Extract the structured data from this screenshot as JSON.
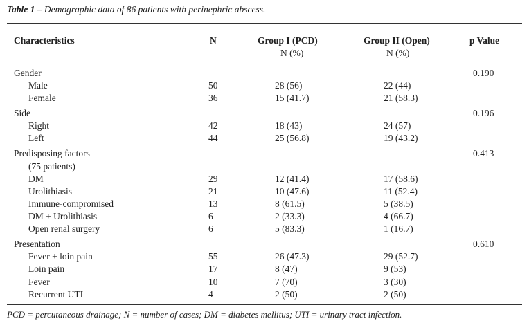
{
  "caption": {
    "label": "Table 1",
    "text": " – Demographic data of 86 patients with perinephric abscess."
  },
  "headers": {
    "characteristics": "Characteristics",
    "n": "N",
    "group1": "Group I (PCD)",
    "group1_sub": "N (%)",
    "group2": "Group II (Open)",
    "group2_sub": "N (%)",
    "pvalue": "p Value"
  },
  "rows": [
    {
      "label": "Gender",
      "indent": false,
      "n": "",
      "g1": "",
      "g2": "",
      "p": "0.190"
    },
    {
      "label": "Male",
      "indent": true,
      "n": "50",
      "g1": "28 (56)",
      "g2": "22 (44)",
      "p": ""
    },
    {
      "label": "Female",
      "indent": true,
      "n": "36",
      "g1": "15 (41.7)",
      "g2": "21 (58.3)",
      "p": ""
    },
    {
      "label": "Side",
      "indent": false,
      "n": "",
      "g1": "",
      "g2": "",
      "p": "0.196"
    },
    {
      "label": "Right",
      "indent": true,
      "n": "42",
      "g1": "18 (43)",
      "g2": "24 (57)",
      "p": ""
    },
    {
      "label": "Left",
      "indent": true,
      "n": "44",
      "g1": "25 (56.8)",
      "g2": "19 (43.2)",
      "p": ""
    },
    {
      "label": "Predisposing factors",
      "indent": false,
      "n": "",
      "g1": "",
      "g2": "",
      "p": "0.413"
    },
    {
      "label": "(75 patients)",
      "indent": true,
      "n": "",
      "g1": "",
      "g2": "",
      "p": ""
    },
    {
      "label": "DM",
      "indent": true,
      "n": "29",
      "g1": "12 (41.4)",
      "g2": "17 (58.6)",
      "p": ""
    },
    {
      "label": "Urolithiasis",
      "indent": true,
      "n": "21",
      "g1": "10 (47.6)",
      "g2": "11 (52.4)",
      "p": ""
    },
    {
      "label": "Immune-compromised",
      "indent": true,
      "n": "13",
      "g1": "8 (61.5)",
      "g2": "5 (38.5)",
      "p": ""
    },
    {
      "label": "DM + Urolithiasis",
      "indent": true,
      "n": "6",
      "g1": "2 (33.3)",
      "g2": "4 (66.7)",
      "p": ""
    },
    {
      "label": "Open renal surgery",
      "indent": true,
      "n": "6",
      "g1": "5 (83.3)",
      "g2": "1 (16.7)",
      "p": ""
    },
    {
      "label": "Presentation",
      "indent": false,
      "n": "",
      "g1": "",
      "g2": "",
      "p": "0.610"
    },
    {
      "label": "Fever + loin pain",
      "indent": true,
      "n": "55",
      "g1": "26 (47.3)",
      "g2": "29 (52.7)",
      "p": ""
    },
    {
      "label": "Loin pain",
      "indent": true,
      "n": "17",
      "g1": "8 (47)",
      "g2": "9 (53)",
      "p": ""
    },
    {
      "label": "Fever",
      "indent": true,
      "n": "10",
      "g1": "7 (70)",
      "g2": "3 (30)",
      "p": ""
    },
    {
      "label": "Recurrent UTI",
      "indent": true,
      "n": "4",
      "g1": "2 (50)",
      "g2": "2 (50)",
      "p": ""
    }
  ],
  "footnote": "PCD = percutaneous drainage; N = number of cases;  DM = diabetes mellitus; UTI = urinary tract infection."
}
